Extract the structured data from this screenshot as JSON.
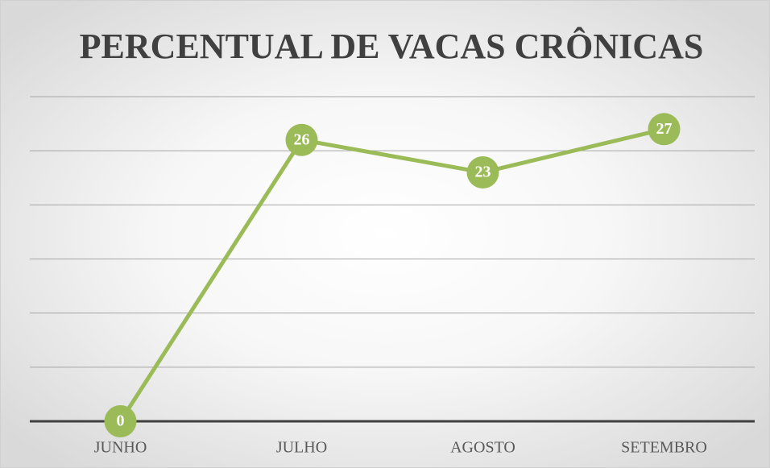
{
  "chart_data": {
    "type": "line",
    "title": "PERCENTUAL DE VACAS CRÔNICAS",
    "categories": [
      "JUNHO",
      "JULHO",
      "AGOSTO",
      "SETEMBRO"
    ],
    "values": [
      0,
      26,
      23,
      27
    ],
    "color": "#9bbb59",
    "ylim": [
      0,
      30
    ],
    "yticks": [
      0,
      5,
      10,
      15,
      20,
      25,
      30
    ],
    "grid": true
  }
}
